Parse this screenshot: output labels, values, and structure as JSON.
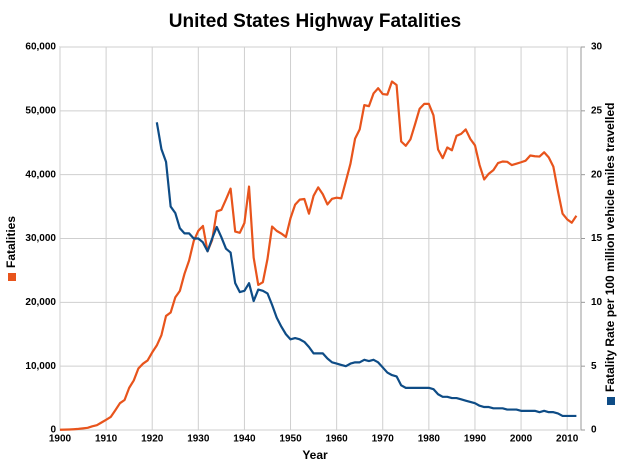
{
  "chart_data": {
    "type": "line",
    "title": "United States Highway Fatalities",
    "x_label": "Year",
    "x": [
      1900,
      1901,
      1902,
      1903,
      1904,
      1905,
      1906,
      1907,
      1908,
      1909,
      1910,
      1911,
      1912,
      1913,
      1914,
      1915,
      1916,
      1917,
      1918,
      1919,
      1920,
      1921,
      1922,
      1923,
      1924,
      1925,
      1926,
      1927,
      1928,
      1929,
      1930,
      1931,
      1932,
      1933,
      1934,
      1935,
      1936,
      1937,
      1938,
      1939,
      1940,
      1941,
      1942,
      1943,
      1944,
      1945,
      1946,
      1947,
      1948,
      1949,
      1950,
      1951,
      1952,
      1953,
      1954,
      1955,
      1956,
      1957,
      1958,
      1959,
      1960,
      1961,
      1962,
      1963,
      1964,
      1965,
      1966,
      1967,
      1968,
      1969,
      1970,
      1971,
      1972,
      1973,
      1974,
      1975,
      1976,
      1977,
      1978,
      1979,
      1980,
      1981,
      1982,
      1983,
      1984,
      1985,
      1986,
      1987,
      1988,
      1989,
      1990,
      1991,
      1992,
      1993,
      1994,
      1995,
      1996,
      1997,
      1998,
      1999,
      2000,
      2001,
      2002,
      2003,
      2004,
      2005,
      2006,
      2007,
      2008,
      2009,
      2010,
      2011,
      2012
    ],
    "series": [
      {
        "name": "Fatalities",
        "color": "#e8541c",
        "axis": "y",
        "values": [
          36,
          54,
          79,
          117,
          172,
          252,
          338,
          581,
          751,
          1174,
          1599,
          2043,
          3100,
          4200,
          4700,
          6600,
          7766,
          9630,
          10390,
          10896,
          12155,
          13253,
          14859,
          17870,
          18400,
          20771,
          21800,
          24470,
          26557,
          29592,
          31204,
          31963,
          28000,
          29746,
          34240,
          34494,
          36126,
          37819,
          31083,
          30895,
          32430,
          38142,
          27007,
          22727,
          23165,
          26785,
          31874,
          31193,
          30775,
          30246,
          33186,
          35309,
          36088,
          36190,
          33890,
          36688,
          38010,
          36932,
          35331,
          36223,
          36399,
          36285,
          38980,
          41723,
          45645,
          47089,
          50894,
          50724,
          52725,
          53543,
          52627,
          52542,
          54589,
          54052,
          45196,
          44525,
          45523,
          47878,
          50331,
          51093,
          51091,
          49301,
          43945,
          42589,
          44257,
          43825,
          46087,
          46390,
          47087,
          45582,
          44599,
          41508,
          39250,
          40150,
          40716,
          41817,
          42065,
          42013,
          41501,
          41717,
          41945,
          42196,
          43005,
          42884,
          42836,
          43510,
          42708,
          41259,
          37423,
          33883,
          32999,
          32479,
          33561
        ]
      },
      {
        "name": "Fatality Rate per 100 million vehicle miles travelled",
        "color": "#0e4c86",
        "axis": "y2",
        "values": [
          null,
          null,
          null,
          null,
          null,
          null,
          null,
          null,
          null,
          null,
          null,
          null,
          null,
          null,
          null,
          null,
          null,
          null,
          null,
          null,
          null,
          24.1,
          22.0,
          21.0,
          17.5,
          17.0,
          15.8,
          15.4,
          15.4,
          15.0,
          15.0,
          14.7,
          14.0,
          15.0,
          15.9,
          15.1,
          14.2,
          13.9,
          11.5,
          10.8,
          10.9,
          11.5,
          10.1,
          11.0,
          10.9,
          10.7,
          9.8,
          8.8,
          8.1,
          7.5,
          7.1,
          7.2,
          7.1,
          6.9,
          6.5,
          6.0,
          6.0,
          6.0,
          5.6,
          5.3,
          5.2,
          5.1,
          5.0,
          5.2,
          5.3,
          5.3,
          5.5,
          5.4,
          5.5,
          5.3,
          4.9,
          4.5,
          4.3,
          4.2,
          3.5,
          3.3,
          3.3,
          3.3,
          3.3,
          3.3,
          3.3,
          3.2,
          2.8,
          2.6,
          2.6,
          2.5,
          2.5,
          2.4,
          2.3,
          2.2,
          2.1,
          1.9,
          1.8,
          1.8,
          1.7,
          1.7,
          1.7,
          1.6,
          1.6,
          1.6,
          1.5,
          1.5,
          1.5,
          1.5,
          1.4,
          1.5,
          1.4,
          1.4,
          1.3,
          1.1,
          1.1,
          1.1,
          1.1
        ]
      }
    ],
    "xlim": [
      1900,
      2013
    ],
    "xticks": [
      1900,
      1910,
      1920,
      1930,
      1940,
      1950,
      1960,
      1970,
      1980,
      1990,
      2000,
      2010
    ],
    "ylim": [
      0,
      60000
    ],
    "yticks": [
      0,
      {
        "value": 10000,
        "label": "10,000"
      },
      {
        "value": 20000,
        "label": "20,000"
      },
      {
        "value": 30000,
        "label": "30,000"
      },
      {
        "value": 40000,
        "label": "40,000"
      },
      {
        "value": 50000,
        "label": "50,000"
      },
      {
        "value": 60000,
        "label": "60,000"
      }
    ],
    "y2lim": [
      0,
      30
    ],
    "y2ticks": [
      0,
      5,
      10,
      15,
      20,
      25,
      30
    ],
    "grid": true
  }
}
